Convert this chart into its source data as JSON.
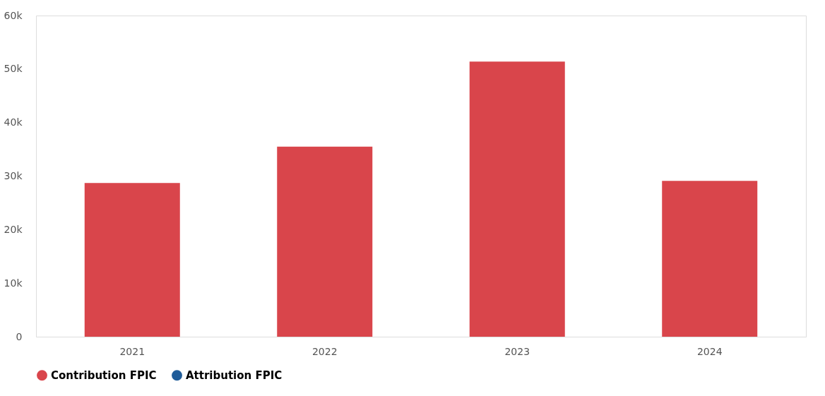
{
  "chart_data": {
    "type": "bar",
    "categories": [
      "2021",
      "2022",
      "2023",
      "2024"
    ],
    "series": [
      {
        "name": "Contribution FPIC",
        "color": "#d9454b",
        "values": [
          28700,
          35500,
          51400,
          29100
        ]
      },
      {
        "name": "Attribution FPIC",
        "color": "#1f5c99",
        "values": [
          null,
          null,
          null,
          null
        ]
      }
    ],
    "ylim": [
      0,
      60000
    ],
    "yticks": [
      0,
      {
        "value": 10000,
        "label": "10k"
      },
      {
        "value": 20000,
        "label": "20k"
      },
      {
        "value": 30000,
        "label": "30k"
      },
      {
        "value": 40000,
        "label": "40k"
      },
      {
        "value": 50000,
        "label": "50k"
      },
      {
        "value": 60000,
        "label": "60k"
      }
    ],
    "grid": false,
    "legend": "bottom"
  }
}
